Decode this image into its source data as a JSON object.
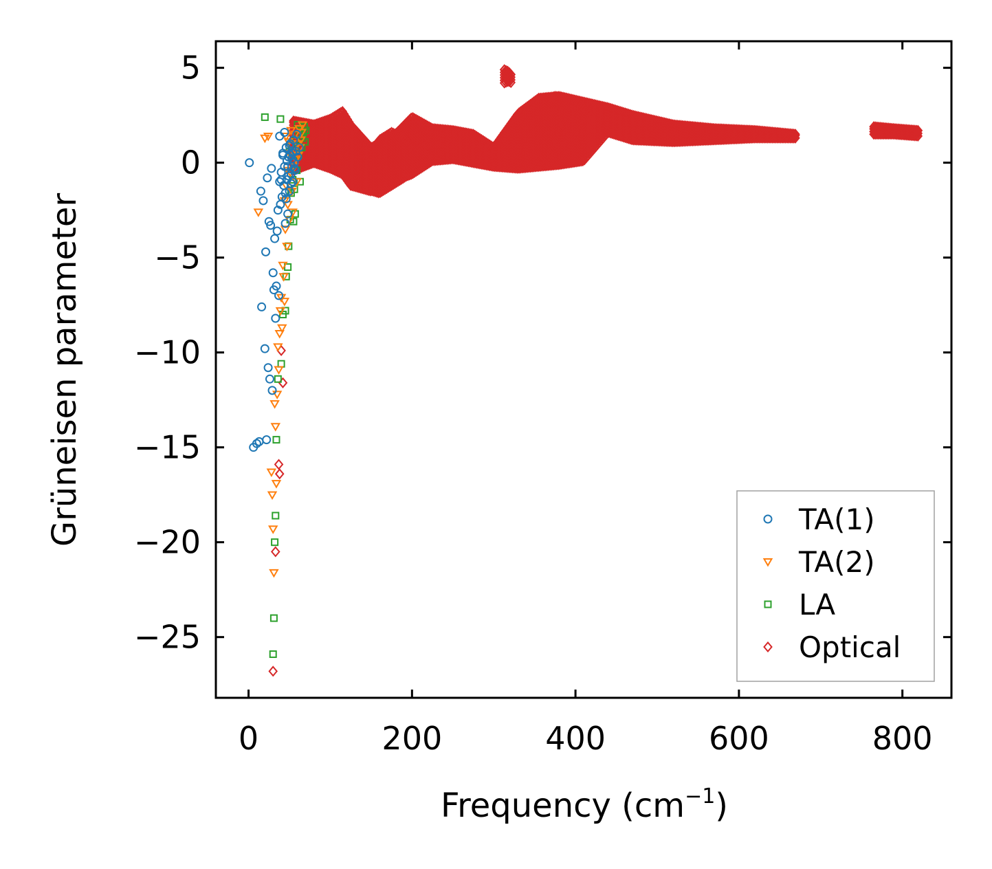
{
  "chart_data": {
    "type": "scatter",
    "title": "",
    "xlabel": "Frequency (cm",
    "xlabel_superscript": "−1",
    "xlabel_suffix": ")",
    "ylabel": "Grüneisen parameter",
    "xlim": [
      -40,
      860
    ],
    "ylim": [
      -28.2,
      6.4
    ],
    "xticks": [
      0,
      200,
      400,
      600,
      800
    ],
    "xtick_labels": [
      "0",
      "200",
      "400",
      "600",
      "800"
    ],
    "yticks": [
      5,
      0,
      -5,
      -10,
      -15,
      -20,
      -25
    ],
    "ytick_labels": [
      "5",
      "0",
      "−5",
      "−10",
      "−15",
      "−20",
      "−25"
    ],
    "grid": false,
    "legend_position": "lower-right",
    "colors": {
      "TA(1)": "#1f77b4",
      "TA(2)": "#ff7f0e",
      "LA": "#2ca02c",
      "Optical": "#d62728"
    },
    "series": [
      {
        "name": "TA(1)",
        "marker": "circle",
        "x": [
          1,
          6,
          10,
          13,
          15,
          16,
          18,
          20,
          21,
          22,
          23,
          24,
          25,
          26,
          27,
          28,
          29,
          30,
          31,
          32,
          33,
          34,
          35,
          36,
          37,
          38,
          39,
          40,
          41,
          42,
          43,
          44,
          45,
          46,
          47,
          48,
          49,
          50,
          51,
          52,
          53,
          54,
          55,
          56,
          57,
          58,
          59,
          60,
          62,
          38,
          40,
          42,
          44,
          46,
          48,
          50,
          52,
          54,
          56,
          45,
          47,
          49,
          51,
          53
        ],
        "y": [
          0,
          -15,
          -14.8,
          -14.7,
          -1.5,
          -7.6,
          -2.0,
          -9.8,
          -4.7,
          -14.6,
          -0.8,
          -10.8,
          -3.1,
          -11.4,
          -3.3,
          -0.3,
          -12.0,
          -5.8,
          -6.7,
          -4.0,
          -8.2,
          -6.5,
          -3.6,
          -2.5,
          -7.0,
          -1.0,
          -2.2,
          -0.5,
          -1.8,
          0.5,
          -1.2,
          -0.2,
          -3.2,
          0.8,
          -0.9,
          -2.7,
          0.3,
          -1.5,
          1.0,
          -0.6,
          0.2,
          -1.0,
          1.2,
          0.0,
          -0.4,
          0.6,
          1.5,
          0.3,
          0.8,
          1.4,
          -0.9,
          0.4,
          1.6,
          -1.9,
          -0.2,
          0.9,
          -1.1,
          0.5,
          -0.3,
          -1.6,
          0.1,
          -0.7,
          0.4,
          -0.2
        ]
      },
      {
        "name": "TA(2)",
        "marker": "triangle_down",
        "x": [
          12,
          20,
          24,
          28,
          29,
          30,
          31,
          32,
          33,
          34,
          35,
          36,
          37,
          38,
          39,
          40,
          41,
          42,
          43,
          44,
          45,
          46,
          47,
          48,
          49,
          50,
          51,
          52,
          53,
          54,
          55,
          56,
          57,
          58,
          59,
          60,
          61,
          62,
          63,
          64,
          65,
          66,
          44,
          46,
          48,
          50,
          52
        ],
        "y": [
          -2.6,
          1.3,
          1.4,
          -16.3,
          -17.5,
          -19.3,
          -21.6,
          -12.7,
          -13.9,
          -16.9,
          -12.2,
          -9.7,
          -10.9,
          -9.0,
          -7.8,
          -7.1,
          -8.7,
          -5.4,
          -6.0,
          -7.3,
          -3.5,
          1.4,
          -4.4,
          -2.2,
          1.1,
          -3.0,
          -0.5,
          0.9,
          -1.5,
          -2.6,
          0.6,
          -0.2,
          1.5,
          0.2,
          -1.0,
          1.0,
          0.4,
          1.8,
          0.8,
          1.2,
          1.6,
          2.0,
          -2.0,
          -1.2,
          -0.4,
          0.5,
          1.7
        ]
      },
      {
        "name": "LA",
        "marker": "square",
        "x": [
          20,
          30,
          31,
          32,
          33,
          34,
          36,
          39,
          40,
          42,
          45,
          46,
          48,
          49,
          50,
          51,
          52,
          53,
          54,
          55,
          56,
          57,
          58,
          59,
          60,
          61,
          62,
          63,
          64,
          65,
          66,
          67,
          68,
          69,
          70
        ],
        "y": [
          2.4,
          -25.9,
          -24.0,
          -20.0,
          -18.6,
          -14.6,
          -11.4,
          2.3,
          -10.6,
          -8.0,
          -7.8,
          -6.0,
          -5.5,
          -4.4,
          0.6,
          -3.0,
          -1.6,
          0.9,
          -0.9,
          -3.1,
          -1.4,
          -2.7,
          1.2,
          -0.4,
          2.0,
          0.4,
          1.5,
          -1.0,
          1.8,
          0.8,
          1.3,
          1.6,
          1.9,
          1.1,
          1.7
        ]
      },
      {
        "name": "Optical",
        "marker": "diamond",
        "x": [
          30,
          33,
          37,
          38,
          40,
          42
        ],
        "y": [
          -26.8,
          -20.5,
          -15.9,
          -16.4,
          -9.9,
          -11.6
        ],
        "bands": [
          {
            "x": [
              55,
              80,
              100,
              115,
              125,
              150,
              175,
              200,
              225,
              250,
              275,
              300,
              330,
              355,
              380,
              410,
              440,
              470,
              520,
              570,
              620,
              670
            ],
            "lower": [
              -0.4,
              0.0,
              -0.3,
              -0.6,
              -1.2,
              -1.5,
              -1.0,
              -0.6,
              0.1,
              0.2,
              0.0,
              -0.2,
              -0.3,
              -0.2,
              -0.1,
              0.1,
              1.6,
              1.2,
              1.1,
              1.2,
              1.3,
              1.3
            ],
            "upper": [
              2.2,
              2.0,
              2.3,
              2.7,
              2.0,
              0.8,
              1.3,
              2.4,
              1.8,
              1.7,
              1.5,
              0.8,
              2.6,
              3.4,
              3.5,
              3.2,
              2.9,
              2.5,
              2.0,
              1.8,
              1.7,
              1.5
            ]
          },
          {
            "x": [
              145,
              160,
              175,
              190,
              205,
              220
            ],
            "lower": [
              -1.4,
              -1.6,
              -1.2,
              -0.8,
              -0.3,
              0.1
            ],
            "upper": [
              0.2,
              1.2,
              1.6,
              1.3,
              0.6,
              1.0
            ]
          },
          {
            "x": [
              345,
              360,
              375,
              390,
              405,
              420
            ],
            "lower": [
              1.2,
              0.3,
              0.8,
              2.6,
              1.5,
              0.5
            ],
            "upper": [
              3.0,
              3.3,
              3.5,
              3.4,
              3.1,
              2.4
            ]
          },
          {
            "x": [
              765,
              790,
              820
            ],
            "lower": [
              1.5,
              1.5,
              1.4
            ],
            "upper": [
              1.9,
              1.8,
              1.7
            ]
          },
          {
            "x": [
              313,
              318,
              322
            ],
            "lower": [
              4.2,
              4.3,
              4.2
            ],
            "upper": [
              4.9,
              4.8,
              4.6
            ]
          }
        ]
      }
    ]
  }
}
